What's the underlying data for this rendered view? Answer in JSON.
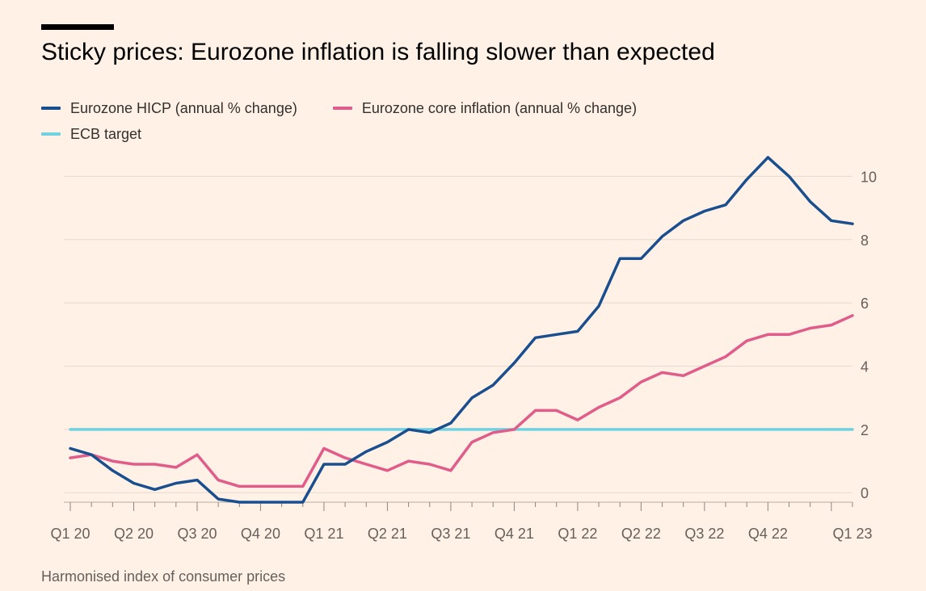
{
  "header": {
    "title": "Sticky prices: Eurozone inflation is falling slower than expected"
  },
  "source": "Harmonised index of consumer prices",
  "colors": {
    "hicp": "#1a4f8f",
    "core": "#e05c8a",
    "target": "#72d1e0",
    "grid": "#e6d9ce",
    "tick_text": "#66605c"
  },
  "chart_data": {
    "type": "line",
    "title": "Sticky prices: Eurozone inflation is falling slower than expected",
    "xlabel": "",
    "ylabel": "",
    "y_axis_position": "right",
    "ylim": [
      -0.3,
      10.7
    ],
    "yticks": [
      0,
      2,
      4,
      6,
      8,
      10
    ],
    "legend_position": "top-left",
    "grid": true,
    "x": [
      "Jan 2020",
      "Feb 2020",
      "Mar 2020",
      "Apr 2020",
      "May 2020",
      "Jun 2020",
      "Jul 2020",
      "Aug 2020",
      "Sep 2020",
      "Oct 2020",
      "Nov 2020",
      "Dec 2020",
      "Jan 2021",
      "Feb 2021",
      "Mar 2021",
      "Apr 2021",
      "May 2021",
      "Jun 2021",
      "Jul 2021",
      "Aug 2021",
      "Sep 2021",
      "Oct 2021",
      "Nov 2021",
      "Dec 2021",
      "Jan 2022",
      "Feb 2022",
      "Mar 2022",
      "Apr 2022",
      "May 2022",
      "Jun 2022",
      "Jul 2022",
      "Aug 2022",
      "Sep 2022",
      "Oct 2022",
      "Nov 2022",
      "Dec 2022",
      "Jan 2023",
      "Feb 2023"
    ],
    "xtick_labels": [
      "Q1 20",
      "Q2 20",
      "Q3 20",
      "Q4 20",
      "Q1 21",
      "Q2 21",
      "Q3 21",
      "Q4 21",
      "Q1 22",
      "Q2 22",
      "Q3 22",
      "Q4 22",
      "Q1 23"
    ],
    "xtick_label_months": [
      "Jan 2020",
      "Apr 2020",
      "Jul 2020",
      "Oct 2020",
      "Jan 2021",
      "Apr 2021",
      "Jul 2021",
      "Oct 2021",
      "Jan 2022",
      "Apr 2022",
      "Jul 2022",
      "Oct 2022",
      "Feb 2023"
    ],
    "series": [
      {
        "name": "Eurozone HICP (annual % change)",
        "key": "hicp",
        "values": [
          1.4,
          1.2,
          0.7,
          0.3,
          0.1,
          0.3,
          0.4,
          -0.2,
          -0.3,
          -0.3,
          -0.3,
          -0.3,
          0.9,
          0.9,
          1.3,
          1.6,
          2.0,
          1.9,
          2.2,
          3.0,
          3.4,
          4.1,
          4.9,
          5.0,
          5.1,
          5.9,
          7.4,
          7.4,
          8.1,
          8.6,
          8.9,
          9.1,
          9.9,
          10.6,
          10.0,
          9.2,
          8.6,
          8.5
        ]
      },
      {
        "name": "Eurozone core inflation (annual % change)",
        "key": "core",
        "values": [
          1.1,
          1.2,
          1.0,
          0.9,
          0.9,
          0.8,
          1.2,
          0.4,
          0.2,
          0.2,
          0.2,
          0.2,
          1.4,
          1.1,
          0.9,
          0.7,
          1.0,
          0.9,
          0.7,
          1.6,
          1.9,
          2.0,
          2.6,
          2.6,
          2.3,
          2.7,
          3.0,
          3.5,
          3.8,
          3.7,
          4.0,
          4.3,
          4.8,
          5.0,
          5.0,
          5.2,
          5.3,
          5.6
        ]
      },
      {
        "name": "ECB target",
        "key": "target",
        "values": [
          2,
          2,
          2,
          2,
          2,
          2,
          2,
          2,
          2,
          2,
          2,
          2,
          2,
          2,
          2,
          2,
          2,
          2,
          2,
          2,
          2,
          2,
          2,
          2,
          2,
          2,
          2,
          2,
          2,
          2,
          2,
          2,
          2,
          2,
          2,
          2,
          2,
          2
        ]
      }
    ]
  }
}
